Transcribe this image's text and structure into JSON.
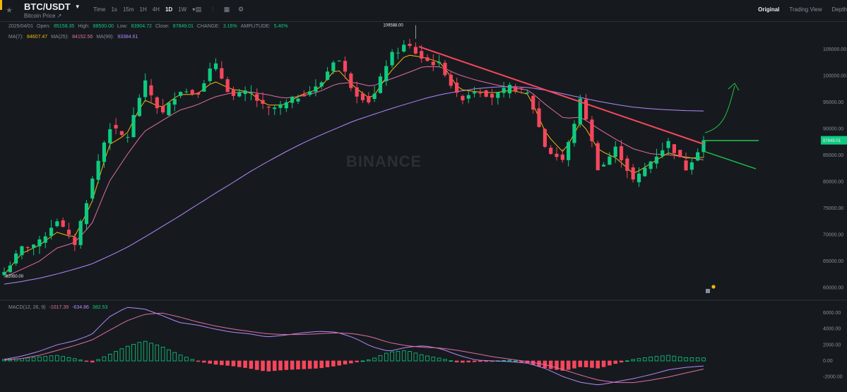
{
  "header": {
    "pair": "BTC/USDT",
    "subtitle": "Bitcoin Price ↗",
    "intervals": [
      "Time",
      "1s",
      "15m",
      "1H",
      "4H",
      "1D",
      "1W"
    ],
    "active_interval": "1D",
    "views": [
      "Original",
      "Trading View",
      "Depth"
    ],
    "active_view": "Original"
  },
  "ohlc": {
    "date": "2025/04/01",
    "open_label": "Open:",
    "open": "85158.35",
    "high_label": "High:",
    "high": "88500.00",
    "low_label": "Low:",
    "low": "83904.72",
    "close_label": "Close:",
    "close": "87849.01",
    "change_label": "CHANGE:",
    "change": "3.16%",
    "amplitude_label": "AMPLITUDE:",
    "amplitude": "5.40%"
  },
  "ma": {
    "ma7_label": "MA(7):",
    "ma7": "84607.47",
    "ma25_label": "MA(25):",
    "ma25": "84152.56",
    "ma99_label": "MA(99):",
    "ma99": "93384.61"
  },
  "macd": {
    "label": "MACD(12, 26, 9)",
    "v1": "-1017.39",
    "v2": "-634.86",
    "v3": "382.53"
  },
  "colors": {
    "up": "#0ecb81",
    "down": "#f6465d",
    "ma7": "#f0b90b",
    "ma25": "#e46ca3",
    "ma99": "#b388ff",
    "trend": "#f6465d",
    "annot": "#20c448",
    "price_tag": "#0ecb81"
  },
  "watermark": "BINANCE",
  "chart_data": [
    {
      "type": "candlestick",
      "title": "BTC/USDT",
      "ylim": [
        57000,
        109000
      ],
      "yticks": [
        60000,
        65000,
        70000,
        75000,
        80000,
        85000,
        90000,
        95000,
        100000,
        105000
      ],
      "ytick_labels": [
        "60000.00",
        "65000.00",
        "70000.00",
        "75000.00",
        "80000.00",
        "85000.00",
        "90000.00",
        "95000.00",
        "100000.00",
        "105000.00"
      ],
      "high_label": "109588.00",
      "low_label": "62050.00",
      "last_price": "87849.01",
      "close_anchors": [
        63000,
        67500,
        68500,
        73000,
        68000,
        80000,
        90500,
        88000,
        99000,
        92500,
        97500,
        96500,
        102500,
        96000,
        97000,
        93500,
        94500,
        96500,
        98000,
        104000,
        97000,
        95000,
        103500,
        106000,
        103000,
        102000,
        95500,
        97500,
        96000,
        98000,
        96500,
        86000,
        84000,
        96000,
        82000,
        86500,
        80000,
        84000,
        87500,
        82500,
        87849
      ],
      "ma7_anchors": [
        62500,
        66500,
        68000,
        70500,
        69500,
        76000,
        87000,
        89000,
        95500,
        94000,
        96500,
        96500,
        99000,
        97500,
        97000,
        94500,
        94500,
        96500,
        97500,
        101500,
        98000,
        95500,
        100500,
        104000,
        103500,
        102500,
        97500,
        97000,
        96800,
        97300,
        96500,
        89000,
        85500,
        91500,
        86000,
        84500,
        81500,
        83500,
        85500,
        84500,
        84607
      ],
      "ma25_anchors": [
        62000,
        63500,
        65000,
        67500,
        68500,
        72000,
        80000,
        85000,
        89500,
        91500,
        93500,
        94500,
        96000,
        96800,
        97000,
        96500,
        95800,
        96200,
        97000,
        98500,
        98800,
        98000,
        99300,
        100500,
        101800,
        101700,
        100200,
        99200,
        98400,
        97800,
        97300,
        94500,
        92000,
        92200,
        90000,
        88000,
        86200,
        85300,
        85100,
        84700,
        84152
      ],
      "ma99_anchors": [
        60700,
        61200,
        61800,
        62600,
        63500,
        64500,
        66000,
        67600,
        69500,
        71500,
        73500,
        75600,
        77700,
        79700,
        81800,
        83700,
        85500,
        87200,
        88700,
        90100,
        91500,
        92600,
        93700,
        94700,
        95700,
        96500,
        97100,
        97600,
        97900,
        98000,
        97800,
        97300,
        96600,
        95900,
        95200,
        94600,
        94100,
        93800,
        93600,
        93450,
        93384
      ]
    },
    {
      "type": "bar+line",
      "title": "MACD(12, 26, 9)",
      "ylim": [
        -3500,
        7000
      ],
      "yticks": [
        6000,
        4000,
        2000,
        0,
        -2000
      ],
      "ytick_labels": [
        "6000.00",
        "4000.00",
        "2000.00",
        "0.00",
        "-2000.00"
      ],
      "hist_anchors": [
        200,
        300,
        500,
        700,
        300,
        -200,
        800,
        1800,
        2500,
        1800,
        800,
        0,
        -400,
        -600,
        -900,
        -1300,
        -1100,
        -1000,
        -900,
        -600,
        -200,
        200,
        1100,
        1300,
        700,
        300,
        -200,
        -100,
        0,
        100,
        -300,
        -900,
        -1200,
        -700,
        -900,
        -300,
        200,
        500,
        700,
        400,
        382
      ],
      "macd_anchors": [
        200,
        600,
        1200,
        2000,
        2500,
        3300,
        5500,
        6700,
        6500,
        5700,
        4800,
        4500,
        4000,
        3600,
        3400,
        3000,
        3200,
        3500,
        3700,
        3600,
        2900,
        1800,
        1200,
        1700,
        1900,
        1500,
        700,
        100,
        0,
        -100,
        -300,
        -1000,
        -2000,
        -2700,
        -3000,
        -2600,
        -2200,
        -1700,
        -1100,
        -800,
        -634
      ],
      "signal_anchors": [
        100,
        300,
        700,
        1300,
        1900,
        2600,
        3800,
        5000,
        5800,
        6000,
        5500,
        4900,
        4400,
        4000,
        3700,
        3400,
        3300,
        3300,
        3400,
        3500,
        3400,
        3000,
        2300,
        1900,
        1700,
        1600,
        1300,
        900,
        500,
        200,
        -100,
        -500,
        -1100,
        -1800,
        -2400,
        -2700,
        -2700,
        -2400,
        -2000,
        -1500,
        -1017
      ]
    }
  ]
}
